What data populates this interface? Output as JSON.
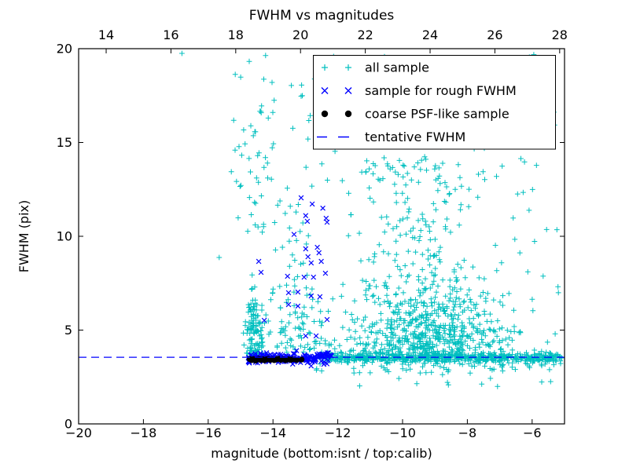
{
  "chart_data": {
    "type": "scatter",
    "title": "FWHM vs magnitudes",
    "xlabel": "magnitude (bottom:isnt / top:calib)",
    "ylabel": "FWHM (pix)",
    "axes": {
      "x_bottom": {
        "range": [
          -20,
          -5
        ],
        "ticks": [
          -20,
          -18,
          -16,
          -14,
          -12,
          -10,
          -8,
          -6
        ],
        "labels": [
          "−20",
          "−18",
          "−16",
          "−14",
          "−12",
          "−10",
          "−8",
          "−6"
        ]
      },
      "x_top": {
        "range": [
          13.15,
          28.15
        ],
        "ticks": [
          14,
          16,
          18,
          20,
          22,
          24,
          26,
          28
        ],
        "labels": [
          "14",
          "16",
          "18",
          "20",
          "22",
          "24",
          "26",
          "28"
        ]
      },
      "y": {
        "range": [
          0,
          20
        ],
        "ticks": [
          0,
          5,
          10,
          15,
          20
        ],
        "labels": [
          "0",
          "5",
          "10",
          "15",
          "20"
        ]
      },
      "grid": false
    },
    "colors": {
      "all_sample": "#00bfbf",
      "rough_fwhm": "#0000ff",
      "coarse_psf": "#000000",
      "tentative_fwhm": "#0000ff",
      "frame": "#000000",
      "background": "#ffffff"
    },
    "tentative_fwhm_y": 3.55,
    "legend": {
      "position": "upper right",
      "items": [
        {
          "label": "all sample",
          "marker": "plus",
          "color": "#00bfbf"
        },
        {
          "label": "sample for rough FWHM",
          "marker": "x",
          "color": "#0000ff"
        },
        {
          "label": "coarse PSF-like sample",
          "marker": "dot",
          "color": "#000000"
        },
        {
          "label": "tentative FWHM",
          "marker": "dash",
          "color": "#0000ff"
        }
      ]
    },
    "series": {
      "all_sample": {
        "marker": "plus",
        "color": "#00bfbf",
        "seed": 11,
        "points": [
          [
            -16.81,
            19.75
          ],
          [
            -15.66,
            8.87
          ]
        ],
        "clusters": [
          {
            "n": 560,
            "x": [
              "uniform",
              -12.35,
              -5.08
            ],
            "y": [
              "normal",
              3.52,
              0.12
            ]
          },
          {
            "n": 90,
            "x": [
              "uniform",
              -13.0,
              -5.1
            ],
            "y": [
              "normal",
              3.3,
              0.28,
              2.55,
              4.0
            ]
          },
          {
            "n": 650,
            "x": [
              "normal",
              -9.25,
              1.35,
              -12.6,
              -5.3
            ],
            "y": [
              "halfnormal",
              3.65,
              2.1,
              12.5
            ]
          },
          {
            "n": 110,
            "x": [
              "normal",
              -9.8,
              1.0,
              -11.8,
              -7.2
            ],
            "y": [
              "uniform",
              8.5,
              14.2
            ]
          },
          {
            "n": 130,
            "x": [
              "normal",
              -14.55,
              0.15,
              -14.95,
              -14.15
            ],
            "y": [
              "halfnormal",
              3.45,
              2.2,
              12.0
            ]
          },
          {
            "n": 28,
            "x": [
              "normal",
              -14.55,
              0.4,
              -15.35,
              -13.8
            ],
            "y": [
              "uniform",
              9.8,
              16.8
            ]
          },
          {
            "n": 60,
            "x": [
              "normal",
              -13.35,
              0.4,
              -14.2,
              -12.45
            ],
            "y": [
              "uniform",
              3.8,
              12.0
            ]
          },
          {
            "n": 45,
            "x": [
              "uniform",
              -14.15,
              -12.45
            ],
            "y": [
              "halfnormal",
              3.8,
              1.5,
              7.6
            ]
          },
          {
            "n": 120,
            "x": [
              "uniform",
              -15.35,
              -5.3
            ],
            "y": [
              "uniform",
              12.0,
              19.85
            ]
          },
          {
            "n": 22,
            "x": [
              "uniform",
              -12.0,
              -5.2
            ],
            "y": [
              "uniform",
              1.8,
              3.05
            ]
          },
          {
            "n": 14,
            "x": [
              "uniform",
              -6.6,
              -5.15
            ],
            "y": [
              "uniform",
              3.8,
              12.5
            ]
          }
        ]
      },
      "rough_fwhm": {
        "marker": "x",
        "color": "#0000ff",
        "seed": 23,
        "points": [
          [
            -13.13,
            12.05
          ],
          [
            -12.79,
            11.72
          ],
          [
            -12.46,
            11.5
          ],
          [
            -12.99,
            11.1
          ],
          [
            -12.94,
            10.8
          ],
          [
            -12.36,
            10.96
          ],
          [
            -12.33,
            10.75
          ],
          [
            -13.35,
            10.1
          ],
          [
            -12.99,
            9.33
          ],
          [
            -12.63,
            9.41
          ],
          [
            -12.58,
            9.12
          ],
          [
            -12.92,
            8.91
          ],
          [
            -12.51,
            8.66
          ],
          [
            -12.82,
            8.58
          ],
          [
            -14.44,
            8.66
          ],
          [
            -14.37,
            8.08
          ],
          [
            -13.55,
            7.87
          ],
          [
            -13.04,
            7.82
          ],
          [
            -12.75,
            7.82
          ],
          [
            -12.38,
            8.03
          ],
          [
            -13.52,
            6.99
          ],
          [
            -13.23,
            7.03
          ],
          [
            -12.82,
            6.82
          ],
          [
            -12.55,
            6.78
          ],
          [
            -13.52,
            6.36
          ],
          [
            -13.23,
            6.28
          ],
          [
            -14.27,
            5.52
          ],
          [
            -12.33,
            5.56
          ],
          [
            -12.99,
            4.69
          ],
          [
            -12.67,
            4.69
          ],
          [
            -12.43,
            3.18
          ],
          [
            -12.94,
            3.26
          ]
        ],
        "clusters": [
          {
            "n": 170,
            "x": [
              "uniform",
              -14.78,
              -12.18
            ],
            "y": [
              "normal",
              3.5,
              0.14,
              3.05,
              3.95
            ]
          }
        ]
      },
      "coarse_psf": {
        "marker": "dot",
        "color": "#000000",
        "points": [
          [
            -14.72,
            3.46
          ],
          [
            -14.66,
            3.4
          ],
          [
            -14.6,
            3.45
          ],
          [
            -14.54,
            3.38
          ],
          [
            -14.49,
            3.44
          ],
          [
            -14.43,
            3.47
          ],
          [
            -14.38,
            3.41
          ],
          [
            -14.32,
            3.45
          ],
          [
            -14.26,
            3.39
          ],
          [
            -14.2,
            3.44
          ],
          [
            -14.14,
            3.47
          ],
          [
            -14.08,
            3.41
          ],
          [
            -14.02,
            3.45
          ],
          [
            -13.96,
            3.4
          ],
          [
            -13.9,
            3.44
          ],
          [
            -13.83,
            3.47
          ],
          [
            -13.76,
            3.42
          ],
          [
            -13.69,
            3.45
          ],
          [
            -13.61,
            3.4
          ],
          [
            -13.53,
            3.44
          ],
          [
            -13.45,
            3.42
          ],
          [
            -13.36,
            3.45
          ],
          [
            -13.27,
            3.41
          ],
          [
            -13.12,
            3.43
          ]
        ]
      },
      "tentative_fwhm": {
        "type": "hline",
        "y": 3.55,
        "style": "dashed",
        "color": "#0000ff"
      }
    }
  }
}
